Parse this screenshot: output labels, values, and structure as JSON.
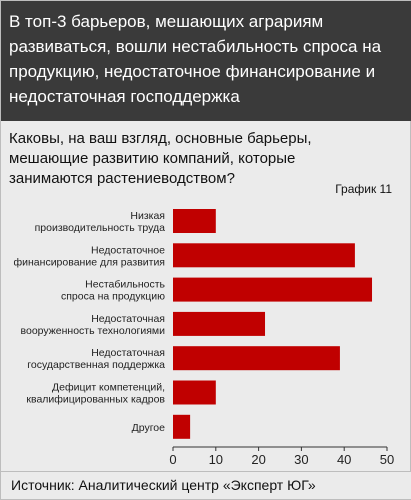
{
  "header": {
    "title": "В топ-3 барьеров, мешающих аграриям развиваться, вошли нестабильность спроса на продукцию, недостаточное финансирование и недостаточная господдержка"
  },
  "question": "Каковы, на ваш взгляд, основные барьеры, мешающие развитию компаний, которые занимаются растениеводством?",
  "chart_number": "График 11",
  "source": "Источник: Аналитический центр «Эксперт ЮГ»",
  "colors": {
    "bar": "#c00000",
    "header_bg": "#3a3a3a",
    "background": "#ebebeb"
  },
  "chart_data": {
    "type": "bar",
    "orientation": "horizontal",
    "categories": [
      [
        "Низкая",
        "производительность труда"
      ],
      [
        "Недостаточное",
        "финансирование для развития"
      ],
      [
        "Нестабильность",
        "спроса на продукцию"
      ],
      [
        "Недостаточная",
        "вооруженность технологиями"
      ],
      [
        "Недостаточная",
        "государственная поддержка"
      ],
      [
        "Дефицит компетенций,",
        "квалифицированных кадров"
      ],
      [
        "Другое"
      ]
    ],
    "values": [
      10,
      42.5,
      46.5,
      21.5,
      39,
      10,
      4
    ],
    "xlim": [
      0,
      50
    ],
    "xticks": [
      0,
      10,
      20,
      30,
      40,
      50
    ],
    "title": "",
    "xlabel": "",
    "ylabel": "",
    "grid": false
  }
}
